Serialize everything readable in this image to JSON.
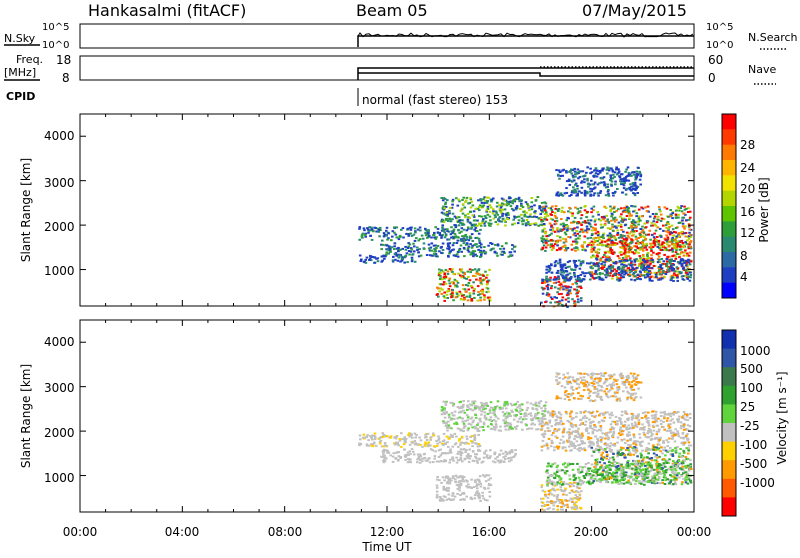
{
  "header": {
    "station": "Hankasalmi (fitACF)",
    "beam": "Beam 05",
    "date": "07/May/2015"
  },
  "panels": {
    "nsky_label": "N.Sky",
    "nsky_top": "10^5",
    "nsky_bottom": "10^0",
    "nsearch_label": "N.Search",
    "nsearch_top": "10^5",
    "nsearch_bottom": "10^0",
    "freq_label_1": "Freq.",
    "freq_label_2": "[MHz]",
    "freq_top": "18",
    "freq_bottom": "8",
    "nave_label": "Nave",
    "nave_top": "60",
    "nave_bottom": "0",
    "cpid_label": "CPID",
    "cpid_text": "normal (fast stereo) 153"
  },
  "colorbars": {
    "power": {
      "title": "Power [dB]",
      "ticks": [
        "28",
        "24",
        "20",
        "16",
        "12",
        "8",
        "4"
      ],
      "colors": [
        "#ff0000",
        "#ff3a00",
        "#ff7a00",
        "#ffb400",
        "#f2e200",
        "#b3d600",
        "#5fc400",
        "#2e9e3a",
        "#2a8a70",
        "#2c6aa6",
        "#1f3fc2",
        "#0000ff"
      ]
    },
    "velocity": {
      "title": "Velocity [m s⁻¹]",
      "ticks": [
        "1000",
        "500",
        "100",
        "25",
        "-25",
        "-100",
        "-500",
        "-1000"
      ],
      "colors": [
        "#1030b0",
        "#2f55a6",
        "#3a7a4a",
        "#2ea12e",
        "#5fd43c",
        "#c0c0c0",
        "#ffd000",
        "#ff9a00",
        "#ff5a00",
        "#ff0000"
      ]
    }
  },
  "chart_data": [
    {
      "type": "heatmap",
      "title": "Power",
      "xlabel": "",
      "ylabel": "Slant Range [km]",
      "x_ticks": [
        "00:00",
        "04:00",
        "08:00",
        "12:00",
        "16:00",
        "20:00",
        "00:00"
      ],
      "y_ticks": [
        "1000",
        "2000",
        "3000",
        "4000"
      ],
      "ylim": [
        180,
        4500
      ],
      "data_start": "10:30",
      "colorbar": "Power [dB]"
    },
    {
      "type": "heatmap",
      "title": "Velocity",
      "xlabel": "Time UT",
      "ylabel": "Slant Range [km]",
      "x_ticks": [
        "00:00",
        "04:00",
        "08:00",
        "12:00",
        "16:00",
        "20:00",
        "00:00"
      ],
      "y_ticks": [
        "1000",
        "2000",
        "3000",
        "4000"
      ],
      "ylim": [
        180,
        4500
      ],
      "data_start": "10:30",
      "colorbar": "Velocity [m s⁻¹]"
    }
  ]
}
